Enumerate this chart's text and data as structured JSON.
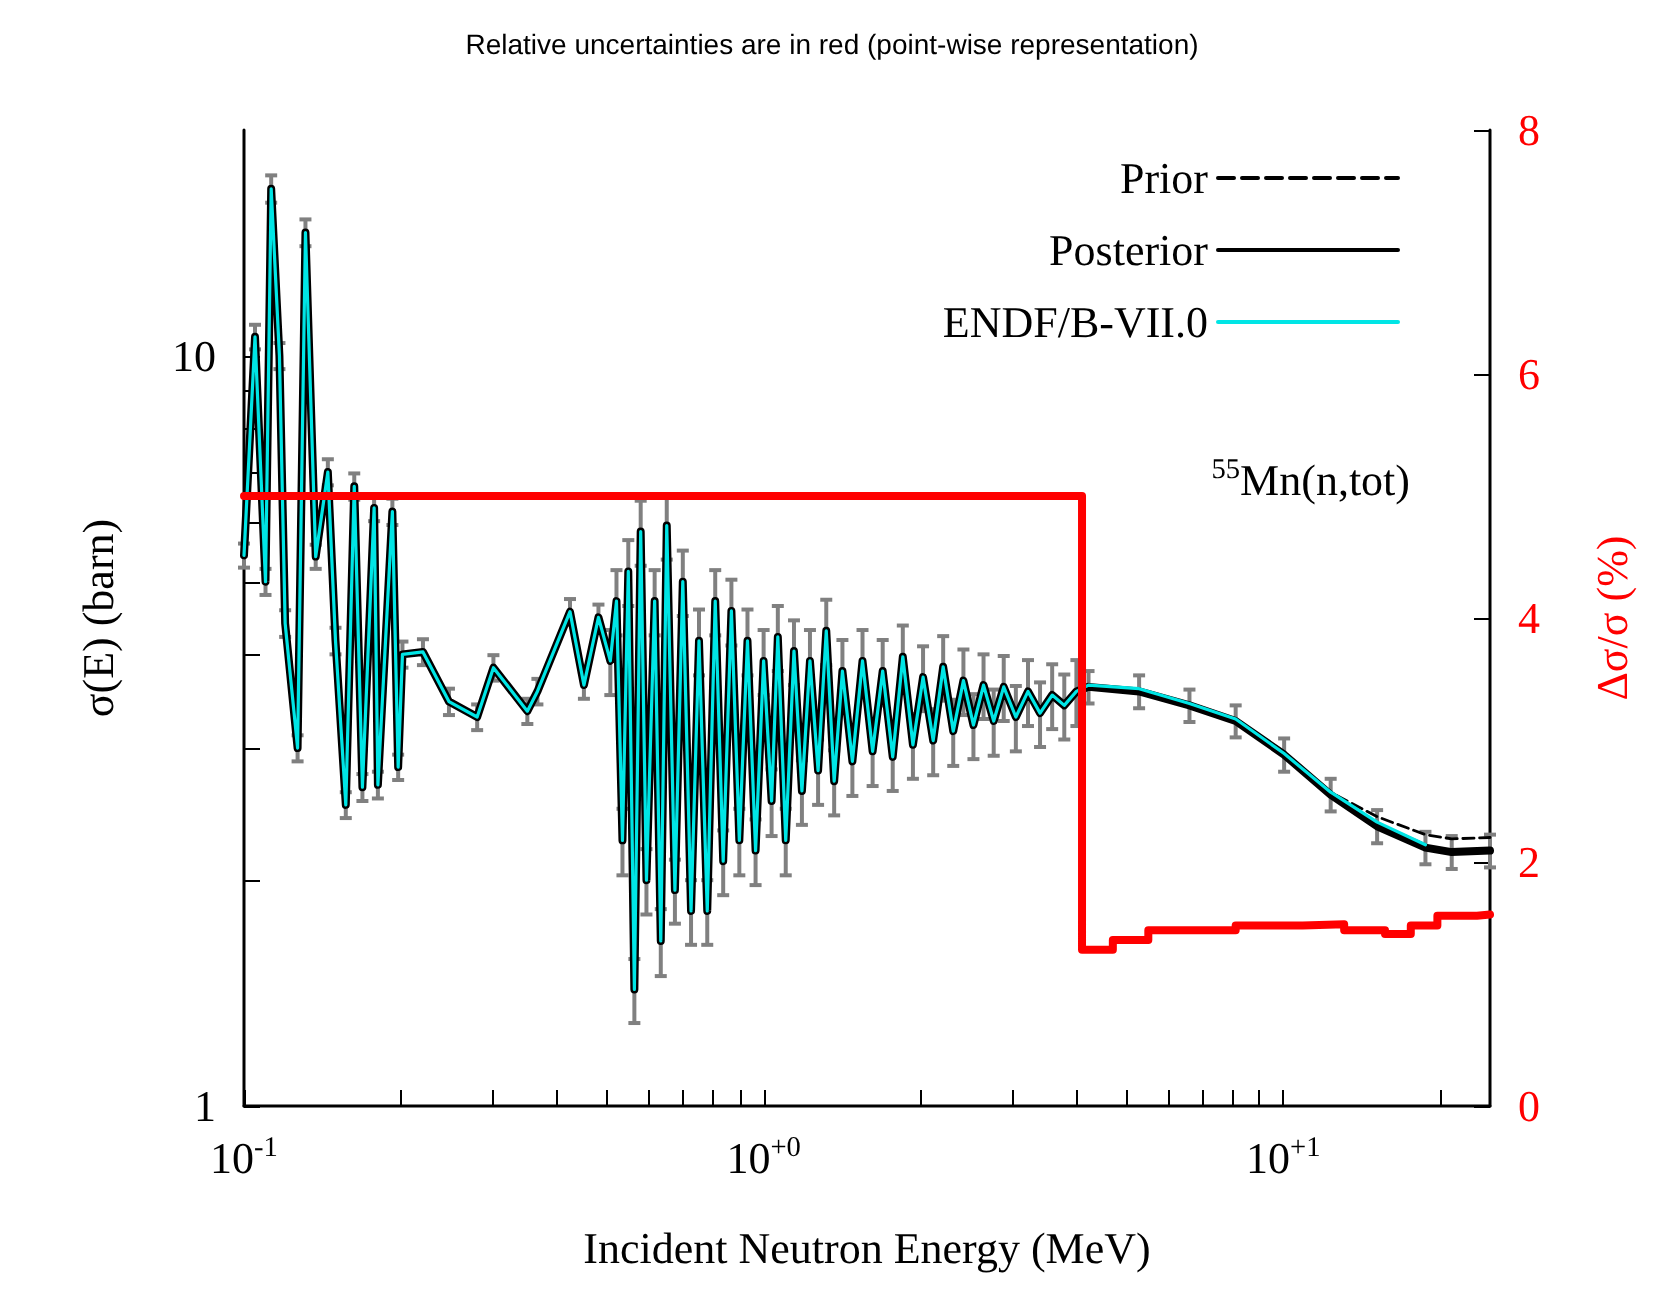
{
  "chart_data": {
    "type": "line",
    "title": "Relative uncertainties are in red (point-wise representation)",
    "xlabel": "Incident Neutron Energy (MeV)",
    "ylabel": "σ(E) (barn)",
    "y2label": "Δσ/σ (%)",
    "annotations": [
      "$^{55}$Mn(n,tot)"
    ],
    "log": "xy",
    "grid": false,
    "legend": "top right",
    "marker": "none",
    "xlim": [
      0.1,
      25
    ],
    "xticks": [
      {
        "value": 0.1,
        "label": "10$^{-1}$"
      },
      {
        "value": 0.2,
        "label": null
      },
      {
        "value": 0.3,
        "label": null
      },
      {
        "value": 0.4,
        "label": null
      },
      {
        "value": 0.5,
        "label": null
      },
      {
        "value": 0.6,
        "label": null
      },
      {
        "value": 0.7,
        "label": null
      },
      {
        "value": 0.8,
        "label": null
      },
      {
        "value": 0.9,
        "label": null
      },
      {
        "value": 1,
        "label": "10$^{+0}$"
      },
      {
        "value": 2,
        "label": null
      },
      {
        "value": 3,
        "label": null
      },
      {
        "value": 4,
        "label": null
      },
      {
        "value": 5,
        "label": null
      },
      {
        "value": 6,
        "label": null
      },
      {
        "value": 7,
        "label": null
      },
      {
        "value": 8,
        "label": null
      },
      {
        "value": 9,
        "label": null
      },
      {
        "value": 10,
        "label": "10$^{+1}$"
      },
      {
        "value": 20,
        "label": null
      }
    ],
    "ylim": [
      1,
      20
    ],
    "yticks": [
      1,
      {
        "value": 2,
        "label": null
      },
      {
        "value": 3,
        "label": null
      },
      {
        "value": 4,
        "label": null
      },
      {
        "value": 5,
        "label": null
      },
      {
        "value": 6,
        "label": null
      },
      {
        "value": 7,
        "label": null
      },
      {
        "value": 8,
        "label": null
      },
      {
        "value": 9,
        "label": null
      },
      10
    ],
    "y2lim": [
      0,
      8
    ],
    "y2ticks": [
      0,
      2,
      4,
      6,
      8
    ],
    "x": [
      0.1,
      0.105,
      0.11,
      0.1128,
      0.117,
      0.12,
      0.1268,
      0.1313,
      0.1374,
      0.145,
      0.15,
      0.157,
      0.163,
      0.169,
      0.178,
      0.181,
      0.193,
      0.198,
      0.2018,
      0.221,
      0.248,
      0.281,
      0.302,
      0.351,
      0.367,
      0.424,
      0.451,
      0.481,
      0.507,
      0.521,
      0.535,
      0.549,
      0.564,
      0.58,
      0.595,
      0.617,
      0.634,
      0.651,
      0.675,
      0.699,
      0.725,
      0.751,
      0.779,
      0.807,
      0.836,
      0.867,
      0.898,
      0.931,
      0.965,
      1.0,
      1.036,
      1.065,
      1.103,
      1.144,
      1.185,
      1.228,
      1.273,
      1.32,
      1.367,
      1.418,
      1.482,
      1.55,
      1.621,
      1.695,
      1.772,
      1.853,
      1.938,
      2.027,
      2.12,
      2.216,
      2.317,
      2.424,
      2.534,
      2.65,
      2.772,
      2.898,
      3.058,
      3.227,
      3.404,
      3.592,
      3.79,
      3.999,
      4.22,
      5.28,
      6.6,
      8.1,
      10.04,
      12.34,
      15.16,
      18.78,
      21.1,
      25
    ],
    "series": [
      {
        "name": "Prior",
        "color": "#000000",
        "line_style": "dashed",
        "x": [
          10.04,
          12.34,
          15.16,
          18.78,
          21.1,
          25
        ],
        "values": [
          2.94,
          2.62,
          2.43,
          2.3,
          2.27,
          2.28
        ]
      },
      {
        "name": "Posterior",
        "color": "#000000",
        "values": [
          5.42,
          10.6,
          5.0,
          16.7,
          10.0,
          4.4,
          3.0,
          14.6,
          5.4,
          7.0,
          4.17,
          2.52,
          6.7,
          2.66,
          6.27,
          2.68,
          6.2,
          2.83,
          4.0,
          4.03,
          3.46,
          3.3,
          3.84,
          3.36,
          3.57,
          4.56,
          3.64,
          4.48,
          3.92,
          4.71,
          2.26,
          5.16,
          1.43,
          5.83,
          2.0,
          4.71,
          1.66,
          5.94,
          1.94,
          5.0,
          1.82,
          4.17,
          1.82,
          4.71,
          2.12,
          4.57,
          2.26,
          4.17,
          2.19,
          3.92,
          2.55,
          4.22,
          2.26,
          4.04,
          2.63,
          3.92,
          2.8,
          4.3,
          2.71,
          3.8,
          2.88,
          3.92,
          2.97,
          3.8,
          2.92,
          3.97,
          3.03,
          3.73,
          3.07,
          3.85,
          3.16,
          3.69,
          3.22,
          3.64,
          3.26,
          3.62,
          3.3,
          3.57,
          3.34,
          3.53,
          3.42,
          3.57,
          3.62,
          3.57,
          3.42,
          3.26,
          2.94,
          2.6,
          2.36,
          2.21,
          2.18,
          2.19
        ],
        "errors": [
          0.2,
          0.4,
          0.2,
          0.7,
          0.4,
          0.18,
          0.12,
          0.6,
          0.2,
          0.28,
          0.17,
          0.1,
          0.27,
          0.11,
          0.25,
          0.11,
          0.25,
          0.11,
          0.16,
          0.16,
          0.14,
          0.13,
          0.15,
          0.13,
          0.14,
          0.18,
          0.15,
          0.18,
          0.39,
          0.47,
          0.23,
          0.52,
          0.14,
          0.58,
          0.2,
          0.47,
          0.17,
          0.59,
          0.19,
          0.5,
          0.18,
          0.42,
          0.18,
          0.47,
          0.21,
          0.46,
          0.23,
          0.42,
          0.22,
          0.39,
          0.26,
          0.42,
          0.23,
          0.4,
          0.26,
          0.39,
          0.28,
          0.43,
          0.27,
          0.38,
          0.29,
          0.39,
          0.3,
          0.38,
          0.29,
          0.4,
          0.3,
          0.37,
          0.31,
          0.38,
          0.32,
          0.37,
          0.32,
          0.36,
          0.33,
          0.36,
          0.33,
          0.36,
          0.33,
          0.35,
          0.34,
          0.36,
          0.18,
          0.18,
          0.17,
          0.16,
          0.15,
          0.13,
          0.12,
          0.11,
          0.11,
          0.11
        ]
      },
      {
        "name": "ENDF/B-VII.0",
        "color": "#00e5e5",
        "values": [
          5.42,
          10.6,
          5.0,
          16.7,
          10.0,
          4.4,
          3.0,
          14.6,
          5.4,
          7.0,
          4.17,
          2.52,
          6.7,
          2.66,
          6.27,
          2.68,
          6.2,
          2.83,
          4.0,
          4.03,
          3.46,
          3.3,
          3.84,
          3.36,
          3.57,
          4.56,
          3.64,
          4.48,
          3.92,
          4.71,
          2.26,
          5.16,
          1.43,
          5.83,
          2.0,
          4.71,
          1.66,
          5.94,
          1.94,
          5.0,
          1.82,
          4.17,
          1.82,
          4.71,
          2.12,
          4.57,
          2.26,
          4.17,
          2.19,
          3.92,
          2.55,
          4.22,
          2.26,
          4.04,
          2.63,
          3.92,
          2.8,
          4.3,
          2.71,
          3.8,
          2.88,
          3.92,
          2.97,
          3.8,
          2.92,
          3.97,
          3.03,
          3.73,
          3.07,
          3.85,
          3.16,
          3.69,
          3.22,
          3.64,
          3.26,
          3.62,
          3.3,
          3.57,
          3.34,
          3.53,
          3.42,
          3.57,
          3.64,
          3.6,
          3.44,
          3.28,
          2.95,
          2.62,
          2.39,
          2.23,
          null,
          null
        ]
      },
      {
        "type": "step",
        "axis": "y2",
        "color": "#ff0000",
        "x": [
          0.1,
          4.1,
          4.7,
          5.5,
          8.1,
          10.9,
          13.1,
          15.7,
          17.6,
          19.8,
          23.6,
          25
        ],
        "values": [
          5,
          1.28,
          1.36,
          1.44,
          1.48,
          1.49,
          1.44,
          1.41,
          1.48,
          1.56,
          1.57,
          1.57
        ]
      }
    ]
  }
}
